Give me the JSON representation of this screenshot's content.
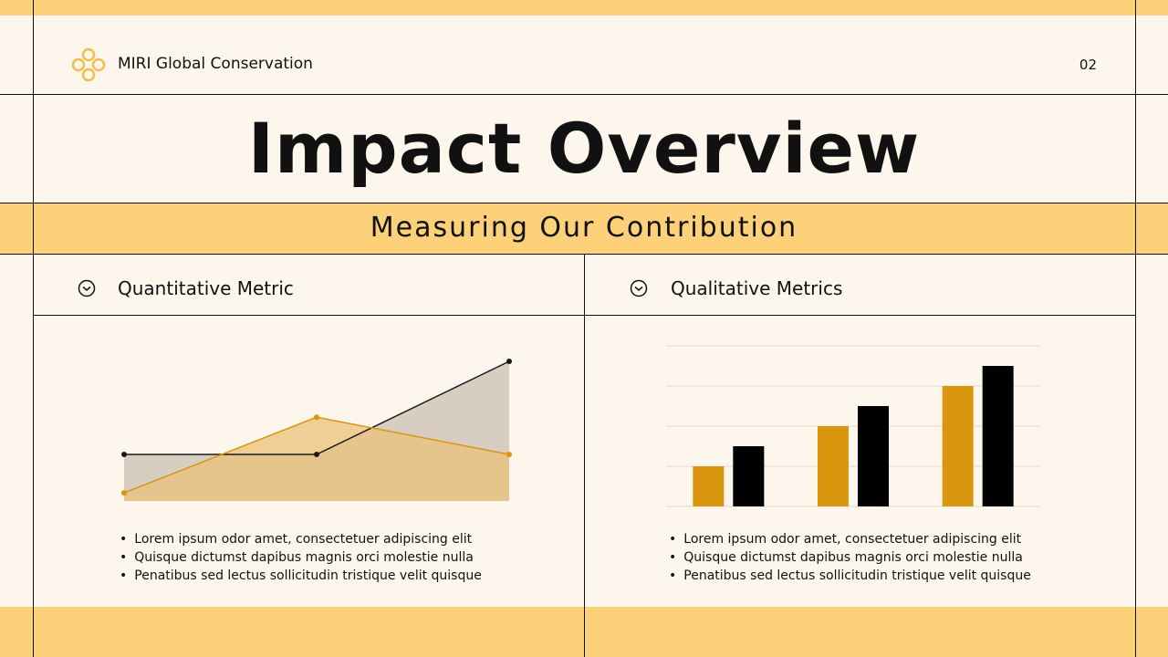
{
  "header": {
    "brand": "MIRI Global Conservation",
    "page": "02"
  },
  "title": "Impact Overview",
  "subtitle": "Measuring Our Contribution",
  "panels": [
    {
      "heading": "Quantitative Metric",
      "bullets": [
        "Lorem ipsum odor amet, consectetuer adipiscing elit",
        "Quisque dictumst dapibus magnis orci molestie nulla",
        "Penatibus sed lectus sollicitudin tristique velit quisque"
      ]
    },
    {
      "heading": "Qualitative Metrics",
      "bullets": [
        "Lorem ipsum odor amet, consectetuer adipiscing elit",
        "Quisque dictumst dapibus magnis orci molestie nulla",
        "Penatibus sed lectus sollicitudin tristique velit quisque"
      ]
    }
  ],
  "chart_data": [
    {
      "type": "line",
      "categories": [
        null,
        null,
        null
      ],
      "ylim": [
        0,
        6
      ],
      "area": true,
      "series": [
        {
          "color": "#1a1a1a",
          "fill": "#c9bfb3",
          "values": [
            2,
            2,
            6
          ]
        },
        {
          "color": "#d9960f",
          "fill": "#e9c27a",
          "values": [
            0.35,
            3.6,
            2
          ]
        }
      ]
    },
    {
      "type": "bar",
      "categories": [
        null,
        null,
        null
      ],
      "ylim": [
        0,
        4
      ],
      "yticks": [
        0,
        1,
        2,
        3,
        4
      ],
      "grid": true,
      "series": [
        {
          "color": "#d9960f",
          "values": [
            1,
            2,
            3
          ]
        },
        {
          "color": "#000000",
          "values": [
            1.5,
            2.5,
            3.5
          ]
        }
      ]
    }
  ]
}
